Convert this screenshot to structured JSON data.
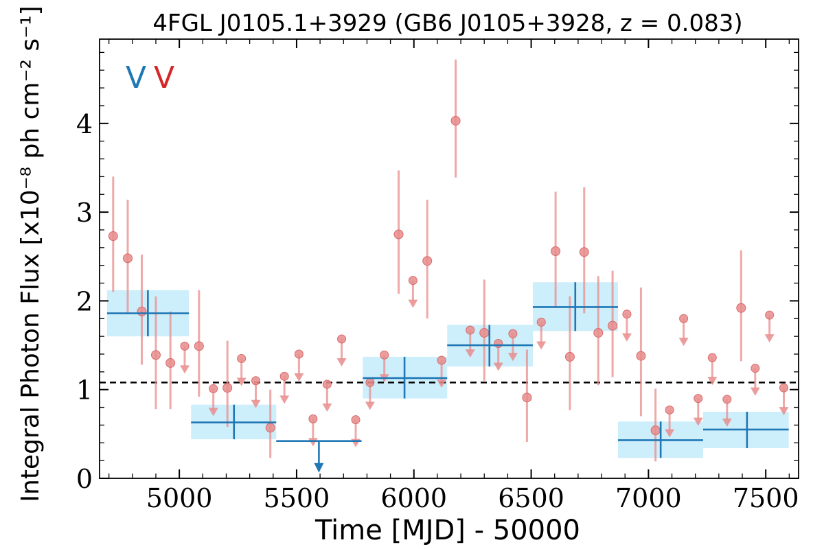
{
  "chart_data": {
    "type": "scatter",
    "title": "4FGL J0105.1+3929 (GB6 J0105+3928, z = 0.083)",
    "xlabel": "Time [MJD] - 50000",
    "ylabel": "Integral Photon Flux [x10⁻⁸ ph cm⁻² s⁻¹]",
    "xlim": [
      4660,
      7640
    ],
    "ylim": [
      0,
      4.95
    ],
    "x_ticks": [
      5000,
      5500,
      6000,
      6500,
      7000,
      7500
    ],
    "y_ticks": [
      0,
      1,
      2,
      3,
      4
    ],
    "legend_markers": [
      "V",
      "V"
    ],
    "legend_colors": [
      "#1f77b4",
      "#d62728"
    ],
    "mean_flux": 1.08,
    "colors": {
      "long_bins": "#1f77b4",
      "long_bins_band": "#cdeefb",
      "short_bins": "#e88c8c",
      "mean_line": "#000000"
    },
    "series": [
      {
        "name": "",
        "bins": [
          {
            "x": 4866,
            "x0": 4692,
            "x1": 5041,
            "y": 1.86,
            "ylo": 1.6,
            "yhi": 2.12
          },
          {
            "x": 5233,
            "x0": 5050,
            "x1": 5413,
            "y": 0.63,
            "ylo": 0.44,
            "yhi": 0.83
          },
          {
            "x": 5595,
            "x0": 5413,
            "x1": 5777,
            "y": 0.42,
            "upper_limit": true
          },
          {
            "x": 5960,
            "x0": 5782,
            "x1": 6142,
            "y": 1.13,
            "ylo": 0.9,
            "yhi": 1.37
          },
          {
            "x": 6322,
            "x0": 6142,
            "x1": 6507,
            "y": 1.5,
            "ylo": 1.26,
            "yhi": 1.73
          },
          {
            "x": 6688,
            "x0": 6507,
            "x1": 6870,
            "y": 1.93,
            "ylo": 1.66,
            "yhi": 2.21
          },
          {
            "x": 7052,
            "x0": 6870,
            "x1": 7233,
            "y": 0.43,
            "ylo": 0.23,
            "yhi": 0.64
          },
          {
            "x": 7420,
            "x0": 7233,
            "x1": 7598,
            "y": 0.55,
            "ylo": 0.34,
            "yhi": 0.75
          }
        ]
      },
      {
        "name": "",
        "points": [
          {
            "x": 4718,
            "y": 2.73,
            "ylo": 2.1,
            "yhi": 3.4
          },
          {
            "x": 4780,
            "y": 2.48,
            "ylo": 1.85,
            "yhi": 3.14
          },
          {
            "x": 4840,
            "y": 1.88,
            "ylo": 1.28,
            "yhi": 2.52
          },
          {
            "x": 4900,
            "y": 1.39,
            "ylo": 0.78,
            "yhi": 2.05
          },
          {
            "x": 4962,
            "y": 1.3,
            "ylo": 0.78,
            "yhi": 1.88
          },
          {
            "x": 5023,
            "y": 1.49,
            "upper_limit": true
          },
          {
            "x": 5084,
            "y": 1.49,
            "ylo": 0.92,
            "yhi": 2.12
          },
          {
            "x": 5145,
            "y": 1.01,
            "upper_limit": true
          },
          {
            "x": 5205,
            "y": 1.02,
            "ylo": 0.58,
            "yhi": 1.55
          },
          {
            "x": 5265,
            "y": 1.35,
            "upper_limit": true
          },
          {
            "x": 5326,
            "y": 1.1,
            "upper_limit": true
          },
          {
            "x": 5388,
            "y": 0.57,
            "ylo": 0.23,
            "yhi": 1.0
          },
          {
            "x": 5448,
            "y": 1.15,
            "upper_limit": true
          },
          {
            "x": 5510,
            "y": 1.4,
            "upper_limit": true
          },
          {
            "x": 5570,
            "y": 0.67,
            "upper_limit": true
          },
          {
            "x": 5630,
            "y": 1.06,
            "upper_limit": true
          },
          {
            "x": 5692,
            "y": 1.57,
            "upper_limit": true
          },
          {
            "x": 5752,
            "y": 0.66,
            "upper_limit": true
          },
          {
            "x": 5813,
            "y": 1.08,
            "upper_limit": true
          },
          {
            "x": 5874,
            "y": 1.39,
            "upper_limit": true
          },
          {
            "x": 5935,
            "y": 2.75,
            "ylo": 2.08,
            "yhi": 3.47
          },
          {
            "x": 5996,
            "y": 2.23,
            "upper_limit": true
          },
          {
            "x": 6057,
            "y": 2.45,
            "ylo": 1.8,
            "yhi": 3.14
          },
          {
            "x": 6118,
            "y": 1.33,
            "upper_limit": true
          },
          {
            "x": 6178,
            "y": 4.03,
            "ylo": 3.39,
            "yhi": 4.72
          },
          {
            "x": 6240,
            "y": 1.67,
            "upper_limit": true
          },
          {
            "x": 6300,
            "y": 1.64,
            "ylo": 1.1,
            "yhi": 2.24
          },
          {
            "x": 6360,
            "y": 1.52,
            "upper_limit": true
          },
          {
            "x": 6422,
            "y": 1.63,
            "upper_limit": true
          },
          {
            "x": 6482,
            "y": 0.91,
            "ylo": 0.41,
            "yhi": 1.45
          },
          {
            "x": 6543,
            "y": 1.76,
            "upper_limit": true
          },
          {
            "x": 6604,
            "y": 2.56,
            "ylo": 1.92,
            "yhi": 3.23
          },
          {
            "x": 6665,
            "y": 1.37,
            "ylo": 0.77,
            "yhi": 2.05
          },
          {
            "x": 6726,
            "y": 2.55,
            "ylo": 1.86,
            "yhi": 3.28
          },
          {
            "x": 6786,
            "y": 1.64,
            "ylo": 1.05,
            "yhi": 2.28
          },
          {
            "x": 6847,
            "y": 1.72,
            "ylo": 1.14,
            "yhi": 2.34
          },
          {
            "x": 6908,
            "y": 1.85,
            "upper_limit": true
          },
          {
            "x": 6968,
            "y": 1.38,
            "ylo": 0.7,
            "yhi": 2.15
          },
          {
            "x": 7030,
            "y": 0.54,
            "ylo": 0.19,
            "yhi": 1.01
          },
          {
            "x": 7090,
            "y": 0.77,
            "upper_limit": true
          },
          {
            "x": 7150,
            "y": 1.8,
            "upper_limit": true
          },
          {
            "x": 7212,
            "y": 0.9,
            "upper_limit": true
          },
          {
            "x": 7272,
            "y": 1.36,
            "upper_limit": true
          },
          {
            "x": 7335,
            "y": 0.89,
            "upper_limit": true
          },
          {
            "x": 7395,
            "y": 1.92,
            "ylo": 1.32,
            "yhi": 2.57
          },
          {
            "x": 7455,
            "y": 1.24,
            "upper_limit": true
          },
          {
            "x": 7516,
            "y": 1.84,
            "upper_limit": true
          },
          {
            "x": 7577,
            "y": 1.02,
            "upper_limit": true
          }
        ]
      }
    ],
    "grid": false,
    "legend_position": "top-left"
  }
}
